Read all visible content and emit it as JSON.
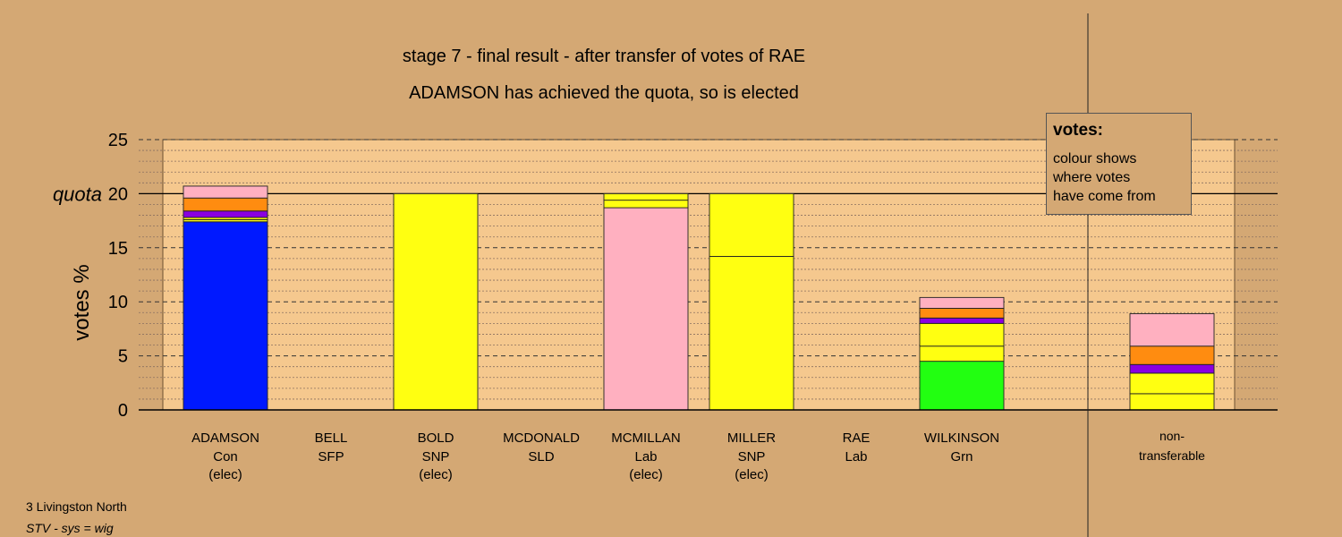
{
  "titles": {
    "line1": "stage 7 - final result - after transfer of votes of RAE",
    "line2": "ADAMSON has achieved the quota, so is elected"
  },
  "legend": {
    "title": "votes:",
    "lines": [
      "colour shows",
      "where votes",
      "have come from"
    ]
  },
  "footer": {
    "ward": "3 Livingston North",
    "system": "STV - sys = wig"
  },
  "colors": {
    "background": "#d4a874",
    "plot_area": "#f5c88e",
    "con": "#0019ff",
    "snp": "#ffff11",
    "lab": "#ffb0c0",
    "grn": "#22ff11",
    "sfp": "#8a00e0",
    "sld": "#ff8c10"
  },
  "chart_data": {
    "type": "bar",
    "stacked": true,
    "ylabel": "votes %",
    "ylim": [
      0,
      25
    ],
    "yticks": [
      0,
      5,
      10,
      15,
      20,
      25
    ],
    "quota": 20,
    "quota_label": "quota",
    "grid": true,
    "categories": [
      {
        "name": "ADAMSON",
        "party": "Con",
        "status": "(elec)"
      },
      {
        "name": "BELL",
        "party": "SFP",
        "status": ""
      },
      {
        "name": "BOLD",
        "party": "SNP",
        "status": "(elec)"
      },
      {
        "name": "MCDONALD",
        "party": "SLD",
        "status": ""
      },
      {
        "name": "MCMILLAN",
        "party": "Lab",
        "status": "(elec)"
      },
      {
        "name": "MILLER",
        "party": "SNP",
        "status": "(elec)"
      },
      {
        "name": "RAE",
        "party": "Lab",
        "status": ""
      },
      {
        "name": "WILKINSON",
        "party": "Grn",
        "status": ""
      },
      {
        "name": "non-",
        "party": "transferable",
        "status": ""
      }
    ],
    "stacks": [
      [
        {
          "value": 17.4,
          "color": "#0019ff"
        },
        {
          "value": 0.2,
          "color": "#ffff11"
        },
        {
          "value": 0.2,
          "color": "#ffff11"
        },
        {
          "value": 0.6,
          "color": "#8a00e0"
        },
        {
          "value": 1.2,
          "color": "#ff8c10"
        },
        {
          "value": 1.1,
          "color": "#ffb0c0"
        }
      ],
      [],
      [
        {
          "value": 20.0,
          "color": "#ffff11"
        }
      ],
      [],
      [
        {
          "value": 18.7,
          "color": "#ffb0c0"
        },
        {
          "value": 0.7,
          "color": "#ffff11"
        },
        {
          "value": 0.6,
          "color": "#ffff11"
        }
      ],
      [
        {
          "value": 14.2,
          "color": "#ffff11"
        },
        {
          "value": 5.8,
          "color": "#ffff11"
        }
      ],
      [],
      [
        {
          "value": 4.5,
          "color": "#22ff11"
        },
        {
          "value": 1.4,
          "color": "#ffff11"
        },
        {
          "value": 2.1,
          "color": "#ffff11"
        },
        {
          "value": 0.5,
          "color": "#8a00e0"
        },
        {
          "value": 0.9,
          "color": "#ff8c10"
        },
        {
          "value": 1.0,
          "color": "#ffb0c0"
        }
      ],
      [
        {
          "value": 1.5,
          "color": "#ffff11"
        },
        {
          "value": 1.9,
          "color": "#ffff11"
        },
        {
          "value": 0.8,
          "color": "#8a00e0"
        },
        {
          "value": 1.7,
          "color": "#ff8c10"
        },
        {
          "value": 3.0,
          "color": "#ffb0c0"
        }
      ]
    ]
  }
}
